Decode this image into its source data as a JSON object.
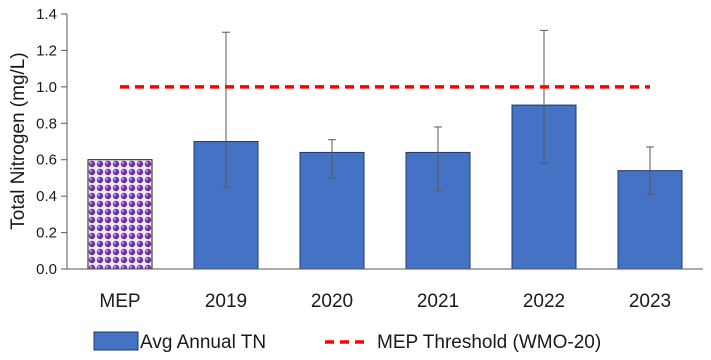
{
  "chart_data": {
    "type": "bar",
    "title": "",
    "xlabel": "",
    "ylabel": "Total Nitrogen (mg/L)",
    "ylim": [
      0,
      1.4
    ],
    "yticks": [
      "0.0",
      "0.2",
      "0.4",
      "0.6",
      "0.8",
      "1.0",
      "1.2",
      "1.4"
    ],
    "grid": false,
    "legend_position": "bottom",
    "categories": [
      "MEP",
      "2019",
      "2020",
      "2021",
      "2022",
      "2023"
    ],
    "series": [
      {
        "name": "Avg Annual TN",
        "values": [
          0.6,
          0.7,
          0.64,
          0.64,
          0.9,
          0.54
        ],
        "error_low": [
          null,
          0.45,
          0.5,
          0.43,
          0.58,
          0.41
        ],
        "error_high": [
          null,
          1.3,
          0.71,
          0.78,
          1.31,
          0.67
        ],
        "color": "#4472C4",
        "patterned_category": "MEP",
        "pattern_color": "#7030A0"
      },
      {
        "name": "MEP Threshold (WMO-20)",
        "type": "threshold-line",
        "value": 1.0,
        "color": "#FF0000"
      }
    ]
  }
}
